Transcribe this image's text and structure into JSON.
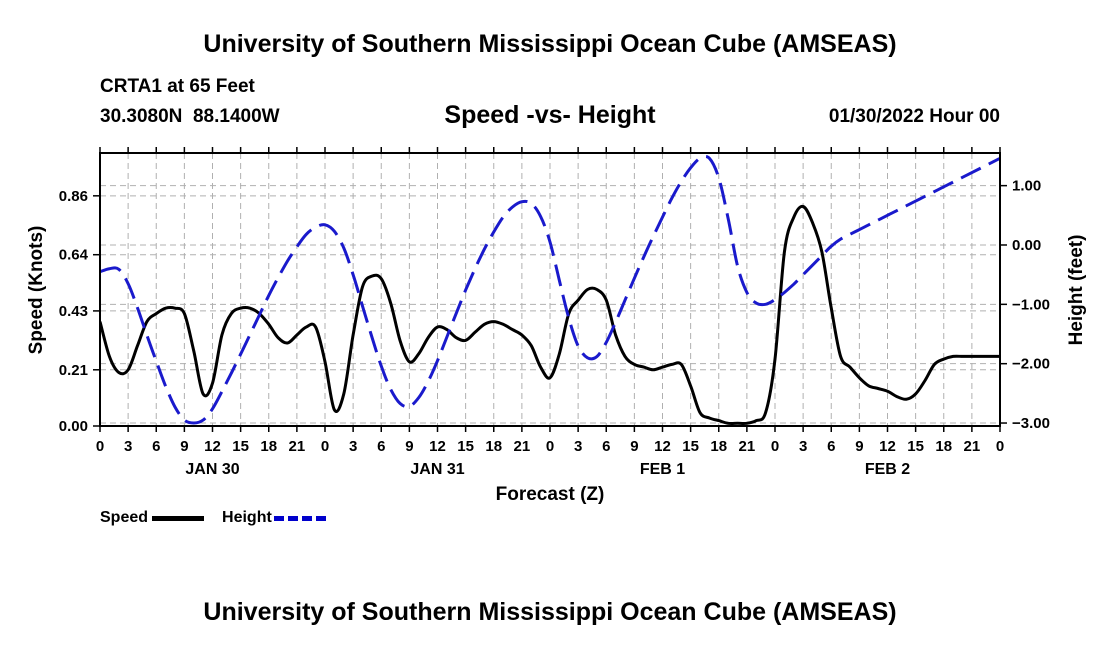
{
  "header": {
    "title": "University of Southern Mississippi Ocean Cube (AMSEAS)",
    "station": "CRTA1 at 65 Feet",
    "coords": "30.3080N  88.1400W",
    "subtitle": "Speed -vs- Height",
    "date": "01/30/2022 Hour 00"
  },
  "footer": {
    "title": "University of Southern Mississippi Ocean Cube (AMSEAS)"
  },
  "legend": {
    "speed_label": "Speed",
    "height_label": "Height"
  },
  "colors": {
    "speed": "#000000",
    "height": "#1a1acc",
    "grid": "#b0b0b0"
  },
  "chart_data": {
    "type": "line",
    "xlabel": "Forecast (Z)",
    "ylabel_left": "Speed (Knots)",
    "ylabel_right": "Height (feet)",
    "x_range_hours": [
      0,
      96
    ],
    "x_tick_step_hours": 3,
    "x_tick_labels": [
      "0",
      "3",
      "6",
      "9",
      "12",
      "15",
      "18",
      "21",
      "0",
      "3",
      "6",
      "9",
      "12",
      "15",
      "18",
      "21",
      "0",
      "3",
      "6",
      "9",
      "12",
      "15",
      "18",
      "21",
      "0",
      "3",
      "6",
      "9",
      "12",
      "15",
      "18",
      "21",
      "0"
    ],
    "day_labels": [
      {
        "hour": 12,
        "label": "JAN 30"
      },
      {
        "hour": 36,
        "label": "JAN 31"
      },
      {
        "hour": 60,
        "label": "FEB 1"
      },
      {
        "hour": 84,
        "label": "FEB 2"
      }
    ],
    "ylim_left": [
      0,
      1.02
    ],
    "yticks_left": [
      0.0,
      0.21,
      0.43,
      0.64,
      0.86
    ],
    "ytick_labels_left": [
      "0.00",
      "0.21",
      "0.43",
      "0.64",
      "0.86"
    ],
    "ylim_right": [
      -3.05,
      1.55
    ],
    "yticks_right": [
      -3,
      -2,
      -1,
      0,
      1
    ],
    "ytick_labels_right": [
      "−3.00",
      "−2.00",
      "−1.00",
      "0.00",
      "1.00"
    ],
    "series": [
      {
        "name": "Speed",
        "axis": "left",
        "style": "solid",
        "x": [
          0,
          1,
          2,
          3,
          4,
          5,
          6,
          7,
          8,
          9,
          10,
          11,
          12,
          13,
          14,
          15,
          16,
          17,
          18,
          19,
          20,
          21,
          22,
          23,
          24,
          25,
          26,
          27,
          28,
          29,
          30,
          31,
          32,
          33,
          34,
          35,
          36,
          37,
          38,
          39,
          40,
          41,
          42,
          43,
          44,
          45,
          46,
          47,
          48,
          49,
          50,
          51,
          52,
          53,
          54,
          55,
          56,
          57,
          58,
          59,
          60,
          61,
          62,
          63,
          64,
          65,
          66,
          67,
          68,
          69,
          70,
          71,
          72,
          73,
          74,
          75,
          76,
          77,
          78,
          79,
          80,
          81,
          82,
          83,
          84,
          85,
          86,
          87,
          88,
          89,
          90,
          91,
          92,
          93,
          94,
          95,
          96
        ],
        "values": [
          0.39,
          0.26,
          0.2,
          0.21,
          0.3,
          0.39,
          0.42,
          0.44,
          0.44,
          0.42,
          0.28,
          0.12,
          0.16,
          0.34,
          0.42,
          0.44,
          0.44,
          0.42,
          0.38,
          0.33,
          0.31,
          0.34,
          0.37,
          0.37,
          0.24,
          0.06,
          0.12,
          0.34,
          0.52,
          0.56,
          0.55,
          0.46,
          0.32,
          0.24,
          0.27,
          0.33,
          0.37,
          0.36,
          0.33,
          0.32,
          0.35,
          0.38,
          0.39,
          0.38,
          0.36,
          0.34,
          0.3,
          0.22,
          0.18,
          0.27,
          0.42,
          0.47,
          0.51,
          0.51,
          0.47,
          0.34,
          0.26,
          0.23,
          0.22,
          0.21,
          0.22,
          0.23,
          0.23,
          0.15,
          0.05,
          0.03,
          0.02,
          0.01,
          0.01,
          0.01,
          0.02,
          0.05,
          0.25,
          0.65,
          0.78,
          0.82,
          0.76,
          0.65,
          0.44,
          0.26,
          0.22,
          0.18,
          0.15,
          0.14,
          0.13,
          0.11,
          0.1,
          0.12,
          0.17,
          0.23,
          0.25,
          0.26,
          0.26,
          0.26,
          0.26,
          0.26,
          0.26
        ]
      },
      {
        "name": "Height",
        "axis": "right",
        "style": "dashed",
        "x": [
          0,
          1,
          2,
          3,
          4,
          5,
          6,
          7,
          8,
          9,
          10,
          11,
          12,
          13,
          14,
          15,
          16,
          17,
          18,
          19,
          20,
          21,
          22,
          23,
          24,
          25,
          26,
          27,
          28,
          29,
          30,
          31,
          32,
          33,
          34,
          35,
          36,
          37,
          38,
          39,
          40,
          41,
          42,
          43,
          44,
          45,
          46,
          47,
          48,
          49,
          50,
          51,
          52,
          53,
          54,
          55,
          56,
          57,
          58,
          59,
          60,
          61,
          62,
          63,
          64,
          65,
          66,
          67,
          68,
          69,
          70,
          71,
          72,
          73,
          74,
          75,
          76,
          77,
          78,
          79,
          80,
          81,
          82,
          83,
          84,
          85,
          86,
          87,
          88,
          89,
          90,
          91,
          92,
          93,
          94,
          95,
          96
        ],
        "values": [
          -0.45,
          -0.4,
          -0.41,
          -0.65,
          -1.06,
          -1.52,
          -1.96,
          -2.38,
          -2.73,
          -2.95,
          -3.0,
          -2.95,
          -2.76,
          -2.47,
          -2.16,
          -1.84,
          -1.51,
          -1.18,
          -0.85,
          -0.55,
          -0.27,
          -0.03,
          0.18,
          0.3,
          0.34,
          0.23,
          -0.05,
          -0.5,
          -1.03,
          -1.55,
          -2.04,
          -2.43,
          -2.67,
          -2.72,
          -2.57,
          -2.3,
          -1.95,
          -1.55,
          -1.15,
          -0.76,
          -0.4,
          -0.07,
          0.22,
          0.47,
          0.64,
          0.73,
          0.7,
          0.48,
          0.05,
          -0.6,
          -1.23,
          -1.7,
          -1.9,
          -1.88,
          -1.64,
          -1.3,
          -0.93,
          -0.56,
          -0.2,
          0.14,
          0.47,
          0.79,
          1.07,
          1.3,
          1.46,
          1.46,
          1.13,
          0.45,
          -0.35,
          -0.8,
          -0.98,
          -1.0,
          -0.92,
          -0.8,
          -0.66,
          -0.5,
          -0.34,
          -0.18,
          -0.02,
          0.1,
          0.18,
          0.26,
          0.34,
          0.42,
          0.5,
          0.58,
          0.66,
          0.74,
          0.82,
          0.9,
          0.98,
          1.06,
          1.14,
          1.22,
          1.3,
          1.38,
          1.46
        ]
      }
    ]
  }
}
